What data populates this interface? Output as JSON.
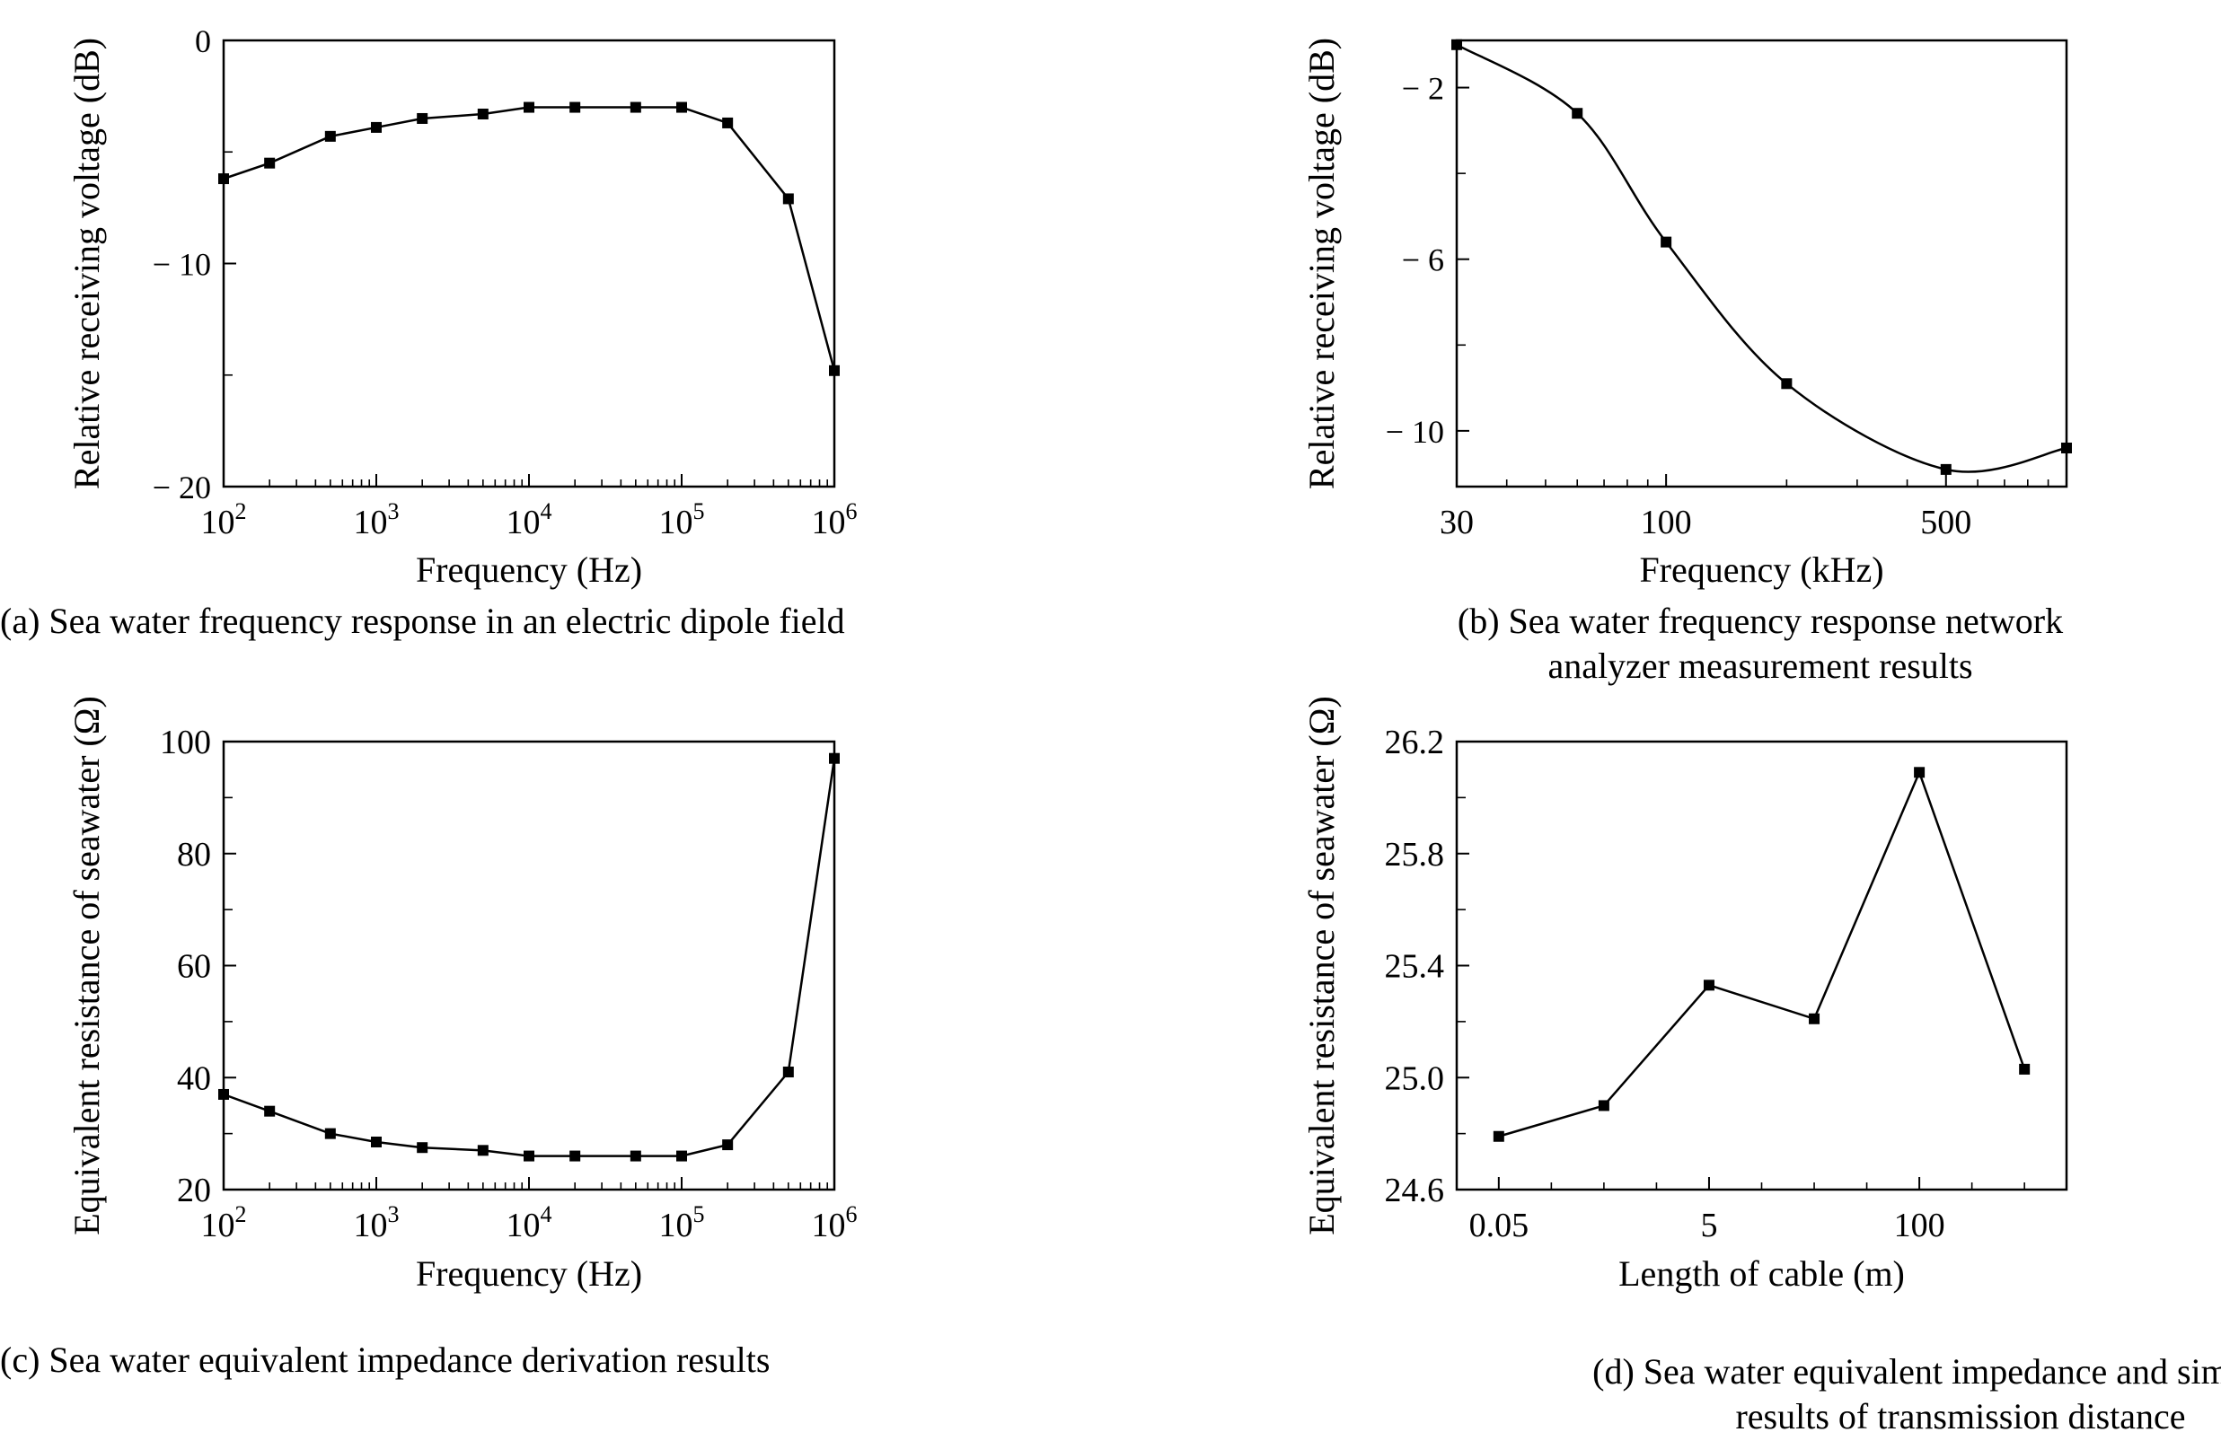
{
  "chart_data": [
    {
      "id": "a",
      "type": "line",
      "caption": "(a) Sea water frequency response in an electric dipole field",
      "xlabel": "Frequency (Hz)",
      "ylabel": "Relative receiving voltage (dB)",
      "x_scale": "log",
      "xlim": [
        100,
        1000000
      ],
      "ylim": [
        -20,
        0
      ],
      "y_reversed": true,
      "x_ticks": [
        100,
        1000,
        10000,
        100000,
        1000000
      ],
      "x_tick_labels": [
        {
          "base": "10",
          "exp": "2"
        },
        {
          "base": "10",
          "exp": "3"
        },
        {
          "base": "10",
          "exp": "4"
        },
        {
          "base": "10",
          "exp": "5"
        },
        {
          "base": "10",
          "exp": "6"
        }
      ],
      "y_ticks": [
        0,
        -10,
        -20
      ],
      "y_tick_labels": [
        "0",
        "− 10",
        "− 20"
      ],
      "y_minor_ticks": [
        -5,
        -15
      ],
      "x": [
        100,
        200,
        500,
        1000,
        2000,
        5000,
        10000,
        20000,
        50000,
        100000,
        200000,
        500000,
        1000000
      ],
      "y": [
        -6.2,
        -5.5,
        -4.3,
        -3.9,
        -3.5,
        -3.3,
        -3.0,
        -3.0,
        -3.0,
        -3.0,
        -3.7,
        -7.1,
        -14.8
      ],
      "grid": false,
      "marker": "square",
      "smooth": false
    },
    {
      "id": "b",
      "type": "line",
      "caption": [
        "(b) Sea water frequency response network",
        "analyzer measurement results"
      ],
      "xlabel": "Frequency (kHz)",
      "ylabel": "Relative receiving voltage (dB)",
      "x_scale": "log",
      "xlim": [
        30,
        1000
      ],
      "ylim": [
        -11.3,
        -0.9
      ],
      "y_reversed": true,
      "x_ticks": [
        30,
        100,
        500
      ],
      "x_tick_labels": [
        "30",
        "100",
        "500"
      ],
      "x_minor_ticks": [
        40,
        50,
        60,
        70,
        80,
        90,
        200,
        300,
        400,
        600,
        700,
        800,
        900
      ],
      "y_ticks": [
        -2,
        -6,
        -10
      ],
      "y_tick_labels": [
        "− 2",
        "− 6",
        "− 10"
      ],
      "y_minor_ticks": [
        -4,
        -8
      ],
      "x": [
        30,
        60,
        100,
        200,
        500,
        1000
      ],
      "y": [
        -1.0,
        -2.6,
        -5.6,
        -8.9,
        -10.9,
        -10.4
      ],
      "grid": false,
      "marker": "square",
      "smooth": true
    },
    {
      "id": "c",
      "type": "line",
      "caption": "(c) Sea water equivalent impedance derivation results",
      "xlabel": "Frequency (Hz)",
      "ylabel": "Equivalent resistance of seawater (Ω)",
      "x_scale": "log",
      "xlim": [
        100,
        1000000
      ],
      "ylim": [
        20,
        100
      ],
      "x_ticks": [
        100,
        1000,
        10000,
        100000,
        1000000
      ],
      "x_tick_labels": [
        {
          "base": "10",
          "exp": "2"
        },
        {
          "base": "10",
          "exp": "3"
        },
        {
          "base": "10",
          "exp": "4"
        },
        {
          "base": "10",
          "exp": "5"
        },
        {
          "base": "10",
          "exp": "6"
        }
      ],
      "y_ticks": [
        20,
        40,
        60,
        80,
        100
      ],
      "y_tick_labels": [
        "20",
        "40",
        "60",
        "80",
        "100"
      ],
      "y_minor_ticks": [
        30,
        50,
        70,
        90
      ],
      "x": [
        100,
        200,
        500,
        1000,
        2000,
        5000,
        10000,
        20000,
        50000,
        100000,
        200000,
        500000,
        1000000
      ],
      "y": [
        37,
        34,
        30,
        28.5,
        27.5,
        27,
        26,
        26,
        26,
        26,
        28,
        41,
        97
      ],
      "grid": false,
      "marker": "square",
      "smooth": false
    },
    {
      "id": "d",
      "type": "line",
      "caption": [
        "(d) Sea water equivalent impedance and simulation",
        "results of transmission distance"
      ],
      "xlabel": "Length of cable (m)",
      "ylabel": "Equivalent resistance of seawater (Ω)",
      "x_scale": "category",
      "xlim": [
        -0.4,
        5.4
      ],
      "ylim": [
        24.6,
        26.2
      ],
      "x_ticks": [
        0,
        2,
        4
      ],
      "x_tick_labels": [
        "0.05",
        "5",
        "100"
      ],
      "x_minor_ticks": [
        0.5,
        1,
        1.5,
        2.5,
        3,
        3.5,
        4.5,
        5
      ],
      "y_ticks": [
        24.6,
        25.0,
        25.4,
        25.8,
        26.2
      ],
      "y_tick_labels": [
        "24.6",
        "25.0",
        "25.4",
        "25.8",
        "26.2"
      ],
      "y_minor_ticks": [
        24.8,
        25.2,
        25.6,
        26.0
      ],
      "x": [
        0,
        1,
        2,
        3,
        4,
        5
      ],
      "y": [
        24.79,
        24.9,
        25.33,
        25.21,
        26.09,
        25.03
      ],
      "grid": false,
      "marker": "square",
      "smooth": false
    }
  ]
}
